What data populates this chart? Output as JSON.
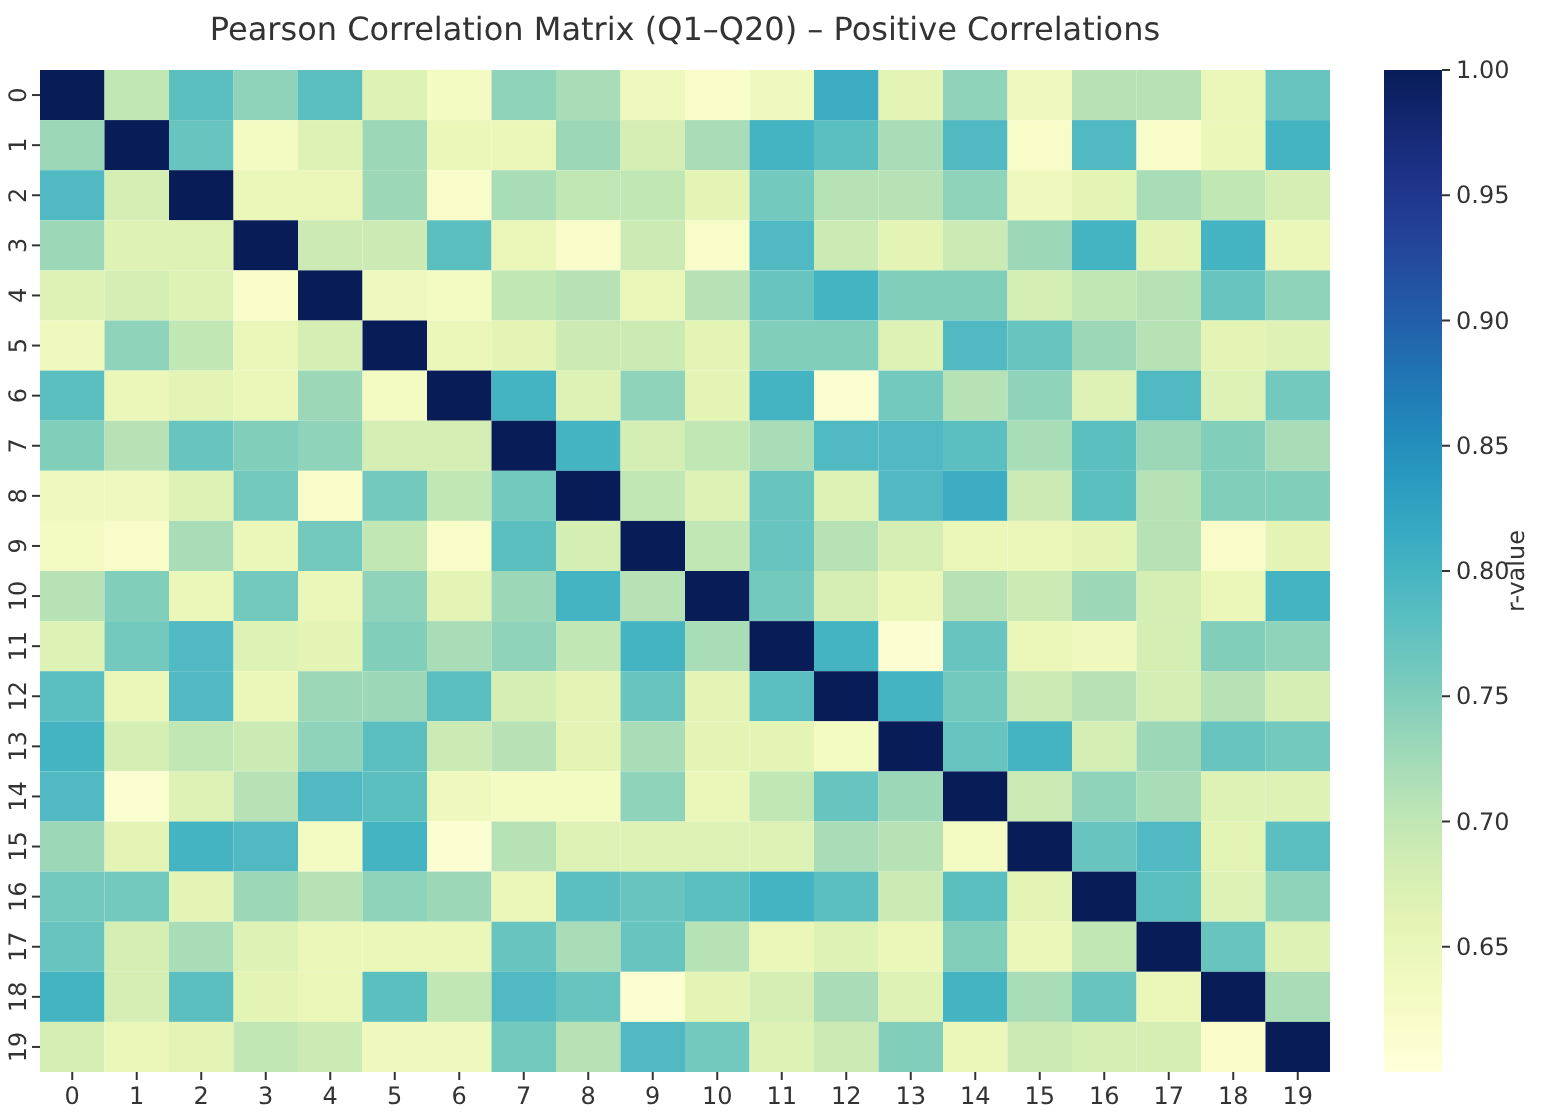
{
  "chart_data": {
    "type": "heatmap",
    "title": "Pearson Correlation Matrix (Q1–Q20) – Positive Correlations",
    "clabel": "r-value",
    "categories": [
      "0",
      "1",
      "2",
      "3",
      "4",
      "5",
      "6",
      "7",
      "8",
      "9",
      "10",
      "11",
      "12",
      "13",
      "14",
      "15",
      "16",
      "17",
      "18",
      "19"
    ],
    "y_categories": [
      "0",
      "1",
      "2",
      "3",
      "4",
      "5",
      "6",
      "7",
      "8",
      "9",
      "10",
      "11",
      "12",
      "13",
      "14",
      "15",
      "16",
      "17",
      "18",
      "19"
    ],
    "clim": [
      0.6,
      1.0
    ],
    "cticks": [
      {
        "value": 0.65,
        "label": "0.65"
      },
      {
        "value": 0.7,
        "label": "0.70"
      },
      {
        "value": 0.75,
        "label": "0.75"
      },
      {
        "value": 0.8,
        "label": "0.80"
      },
      {
        "value": 0.85,
        "label": "0.85"
      },
      {
        "value": 0.9,
        "label": "0.90"
      },
      {
        "value": 0.95,
        "label": "0.95"
      },
      {
        "value": 1.0,
        "label": "1.00"
      }
    ],
    "cells": [
      [
        1.0,
        0.7,
        0.78,
        0.74,
        0.78,
        0.67,
        0.63,
        0.74,
        0.72,
        0.64,
        0.62,
        0.64,
        0.81,
        0.66,
        0.74,
        0.64,
        0.71,
        0.71,
        0.65,
        0.77
      ],
      [
        0.73,
        1.0,
        0.77,
        0.63,
        0.67,
        0.73,
        0.65,
        0.65,
        0.73,
        0.68,
        0.72,
        0.8,
        0.78,
        0.72,
        0.79,
        0.62,
        0.79,
        0.62,
        0.65,
        0.8
      ],
      [
        0.79,
        0.68,
        1.0,
        0.65,
        0.65,
        0.73,
        0.62,
        0.72,
        0.7,
        0.7,
        0.66,
        0.76,
        0.71,
        0.71,
        0.74,
        0.64,
        0.66,
        0.72,
        0.7,
        0.68
      ],
      [
        0.73,
        0.67,
        0.67,
        1.0,
        0.69,
        0.69,
        0.78,
        0.65,
        0.62,
        0.69,
        0.62,
        0.79,
        0.69,
        0.66,
        0.69,
        0.73,
        0.8,
        0.66,
        0.8,
        0.65
      ],
      [
        0.67,
        0.68,
        0.67,
        0.62,
        1.0,
        0.64,
        0.63,
        0.7,
        0.71,
        0.65,
        0.71,
        0.77,
        0.8,
        0.75,
        0.75,
        0.68,
        0.7,
        0.71,
        0.77,
        0.74
      ],
      [
        0.64,
        0.74,
        0.7,
        0.65,
        0.68,
        1.0,
        0.65,
        0.66,
        0.69,
        0.69,
        0.66,
        0.75,
        0.75,
        0.67,
        0.79,
        0.77,
        0.73,
        0.71,
        0.66,
        0.67
      ],
      [
        0.78,
        0.65,
        0.66,
        0.65,
        0.73,
        0.63,
        1.0,
        0.8,
        0.67,
        0.74,
        0.66,
        0.8,
        0.61,
        0.76,
        0.71,
        0.74,
        0.67,
        0.79,
        0.67,
        0.76
      ],
      [
        0.75,
        0.71,
        0.77,
        0.75,
        0.74,
        0.68,
        0.68,
        1.0,
        0.8,
        0.68,
        0.7,
        0.72,
        0.79,
        0.79,
        0.78,
        0.72,
        0.78,
        0.73,
        0.75,
        0.72
      ],
      [
        0.64,
        0.64,
        0.67,
        0.76,
        0.62,
        0.76,
        0.7,
        0.76,
        1.0,
        0.7,
        0.67,
        0.77,
        0.67,
        0.79,
        0.81,
        0.69,
        0.78,
        0.71,
        0.75,
        0.75
      ],
      [
        0.63,
        0.62,
        0.72,
        0.65,
        0.76,
        0.7,
        0.62,
        0.78,
        0.68,
        1.0,
        0.7,
        0.77,
        0.71,
        0.68,
        0.65,
        0.65,
        0.66,
        0.71,
        0.62,
        0.66
      ],
      [
        0.71,
        0.75,
        0.65,
        0.76,
        0.65,
        0.74,
        0.66,
        0.73,
        0.8,
        0.71,
        1.0,
        0.76,
        0.68,
        0.65,
        0.71,
        0.69,
        0.73,
        0.68,
        0.65,
        0.8
      ],
      [
        0.67,
        0.76,
        0.79,
        0.67,
        0.66,
        0.75,
        0.72,
        0.74,
        0.7,
        0.8,
        0.72,
        1.0,
        0.8,
        0.61,
        0.77,
        0.65,
        0.64,
        0.68,
        0.75,
        0.74
      ],
      [
        0.78,
        0.65,
        0.79,
        0.65,
        0.73,
        0.73,
        0.78,
        0.68,
        0.66,
        0.77,
        0.66,
        0.78,
        1.0,
        0.8,
        0.76,
        0.69,
        0.71,
        0.68,
        0.71,
        0.68
      ],
      [
        0.8,
        0.68,
        0.7,
        0.69,
        0.74,
        0.78,
        0.69,
        0.71,
        0.66,
        0.72,
        0.66,
        0.66,
        0.63,
        1.0,
        0.77,
        0.8,
        0.68,
        0.73,
        0.77,
        0.76
      ],
      [
        0.79,
        0.61,
        0.67,
        0.71,
        0.79,
        0.78,
        0.64,
        0.63,
        0.63,
        0.74,
        0.65,
        0.7,
        0.77,
        0.73,
        1.0,
        0.69,
        0.74,
        0.72,
        0.67,
        0.67
      ],
      [
        0.73,
        0.66,
        0.8,
        0.79,
        0.63,
        0.8,
        0.61,
        0.71,
        0.67,
        0.67,
        0.67,
        0.67,
        0.72,
        0.71,
        0.63,
        1.0,
        0.77,
        0.79,
        0.66,
        0.78
      ],
      [
        0.76,
        0.76,
        0.66,
        0.73,
        0.71,
        0.74,
        0.73,
        0.65,
        0.78,
        0.77,
        0.78,
        0.8,
        0.78,
        0.69,
        0.78,
        0.66,
        1.0,
        0.78,
        0.67,
        0.74
      ],
      [
        0.77,
        0.68,
        0.72,
        0.67,
        0.65,
        0.65,
        0.65,
        0.77,
        0.72,
        0.77,
        0.71,
        0.65,
        0.67,
        0.65,
        0.75,
        0.65,
        0.7,
        1.0,
        0.77,
        0.67
      ],
      [
        0.8,
        0.68,
        0.78,
        0.66,
        0.65,
        0.78,
        0.7,
        0.79,
        0.77,
        0.61,
        0.66,
        0.68,
        0.72,
        0.67,
        0.8,
        0.72,
        0.77,
        0.65,
        1.0,
        0.72
      ],
      [
        0.68,
        0.65,
        0.66,
        0.7,
        0.69,
        0.64,
        0.64,
        0.76,
        0.71,
        0.79,
        0.76,
        0.67,
        0.69,
        0.75,
        0.65,
        0.69,
        0.68,
        0.68,
        0.62,
        1.0
      ]
    ]
  }
}
